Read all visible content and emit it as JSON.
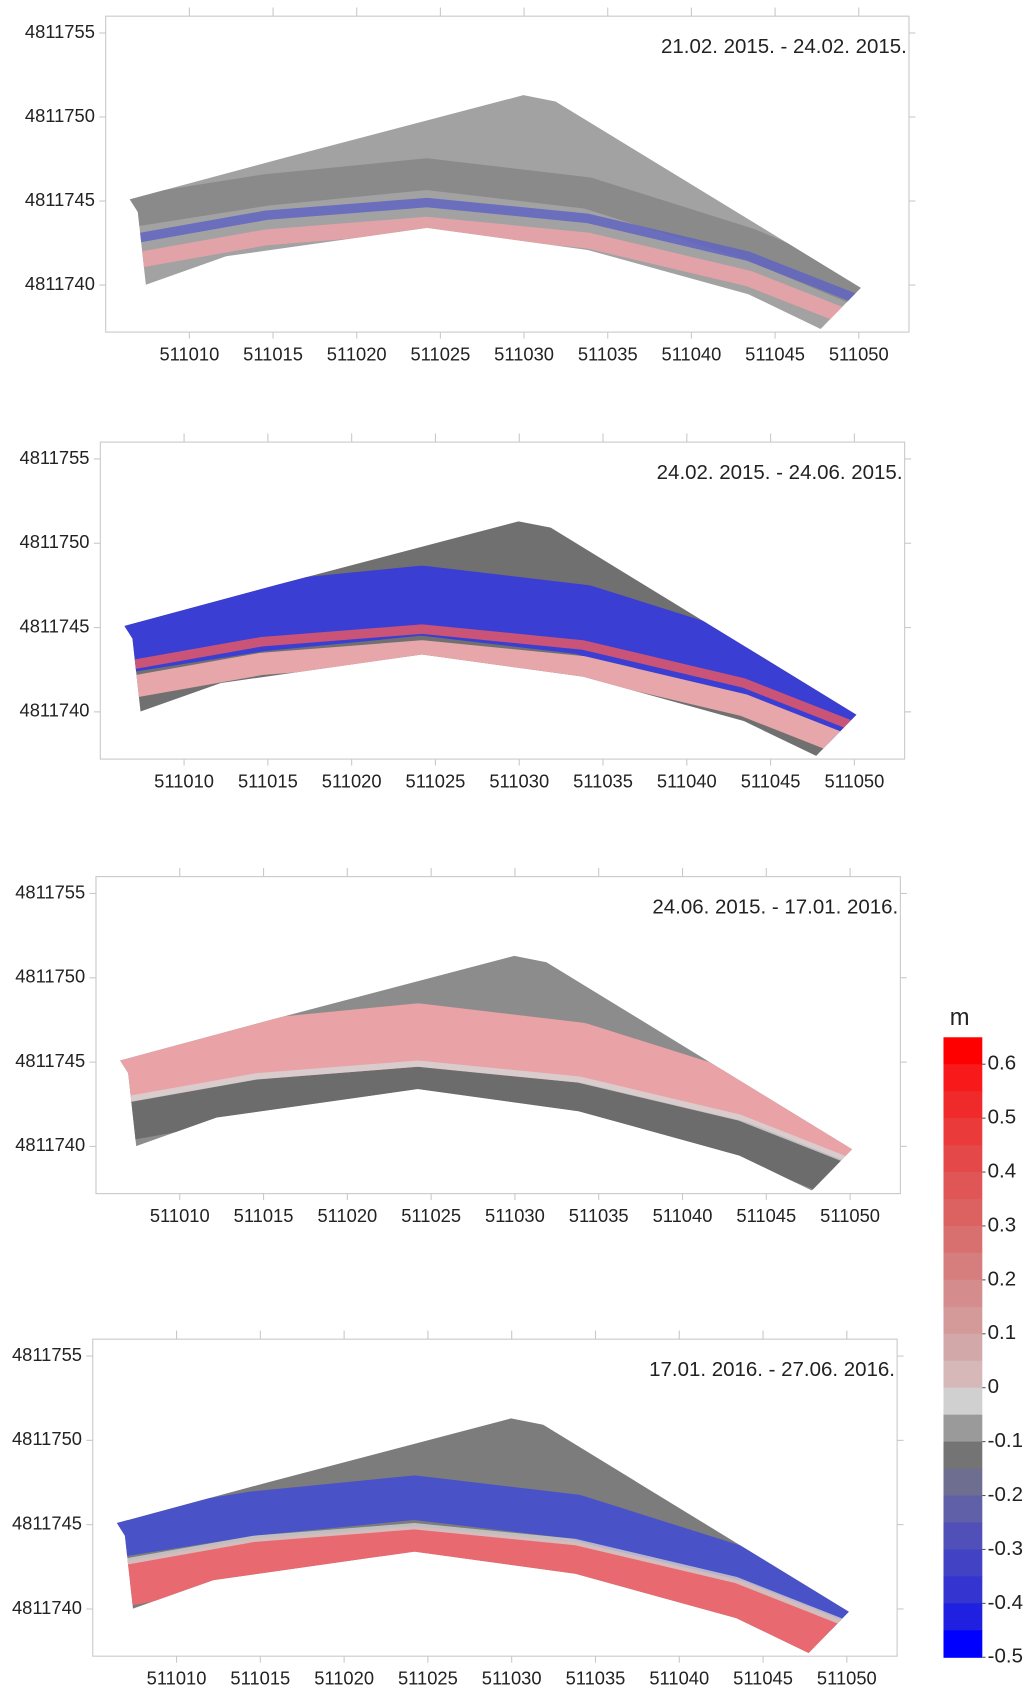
{
  "chart_data": [
    {
      "type": "map",
      "title": "21.02. 2015. - 24.02. 2015.",
      "xlim": [
        511005,
        511053
      ],
      "ylim": [
        4811737.2,
        4811756
      ],
      "xticks": [
        511010,
        511015,
        511020,
        511025,
        511030,
        511035,
        511040,
        511045,
        511050
      ],
      "yticks": [
        4811740,
        4811745,
        4811750,
        4811755
      ]
    },
    {
      "type": "map",
      "title": "24.02. 2015. - 24.06. 2015.",
      "xlim": [
        511005,
        511053
      ],
      "ylim": [
        4811737.2,
        4811756
      ],
      "xticks": [
        511010,
        511015,
        511020,
        511025,
        511030,
        511035,
        511040,
        511045,
        511050
      ],
      "yticks": [
        4811740,
        4811745,
        4811750,
        4811755
      ]
    },
    {
      "type": "map",
      "title": "24.06. 2015. - 17.01. 2016.",
      "xlim": [
        511005,
        511053
      ],
      "ylim": [
        4811737.2,
        4811756
      ],
      "xticks": [
        511010,
        511015,
        511020,
        511025,
        511030,
        511035,
        511040,
        511045,
        511050
      ],
      "yticks": [
        4811740,
        4811745,
        4811750,
        4811755
      ]
    },
    {
      "type": "map",
      "title": "17.01. 2016. - 27.06. 2016.",
      "xlim": [
        511005,
        511053
      ],
      "ylim": [
        4811737.2,
        4811756
      ],
      "xticks": [
        511010,
        511015,
        511020,
        511025,
        511030,
        511035,
        511040,
        511045,
        511050
      ],
      "yticks": [
        4811740,
        4811745,
        4811750,
        4811755
      ]
    },
    {
      "type": "colorbar",
      "title": "m",
      "ylim": [
        -0.5,
        0.65
      ],
      "yticks": [
        0.6,
        0.5,
        0.4,
        0.3,
        0.2,
        0.1,
        0,
        -0.1,
        -0.2,
        -0.3,
        -0.4,
        -0.5
      ],
      "colors": [
        "#ff0000",
        "#f81a1a",
        "#f02a2a",
        "#ea3a3a",
        "#e44848",
        "#e05656",
        "#dc6262",
        "#d87070",
        "#d67e7e",
        "#d48c8c",
        "#d49a9a",
        "#d2a8a8",
        "#d6b8b8",
        "#d0d0d0",
        "#9a9a9a",
        "#747474",
        "#6e6e90",
        "#6060a8",
        "#5050b8",
        "#4242c4",
        "#3434d0",
        "#2020e0",
        "#0000ff"
      ]
    }
  ]
}
